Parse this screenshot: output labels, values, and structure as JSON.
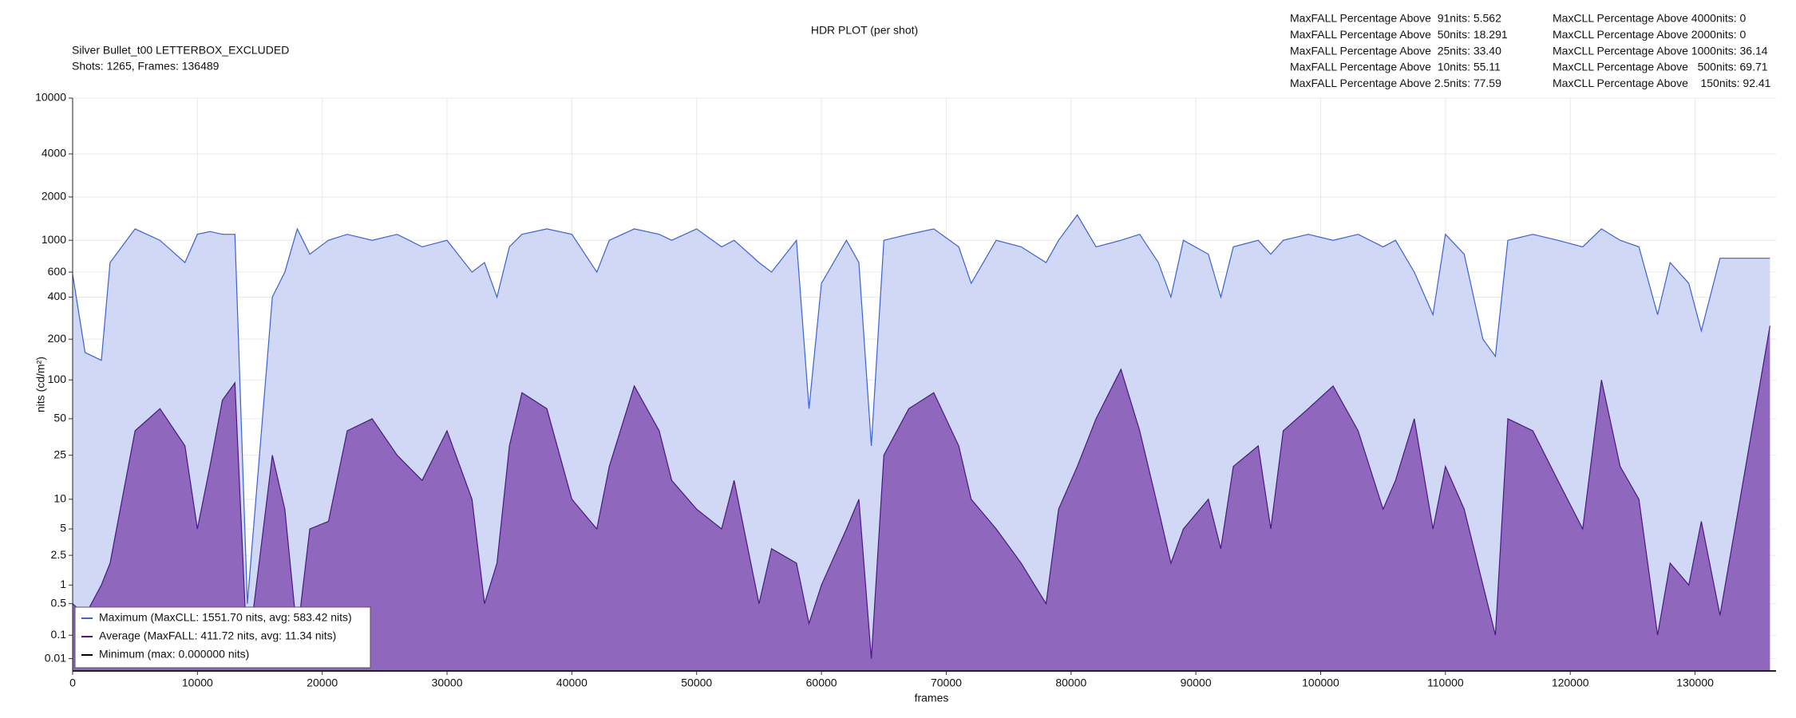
{
  "chart_data": {
    "type": "line",
    "title": "HDR PLOT (per shot)",
    "subtitle_lines": [
      "Silver Bullet_t00 LETTERBOX_EXCLUDED",
      "Shots:  1265, Frames: 136489"
    ],
    "stats": [
      [
        "MaxFALL Percentage Above  91nits: 5.562",
        "MaxFALL Percentage Above  50nits: 18.291",
        "MaxFALL Percentage Above  25nits: 33.40",
        "MaxFALL Percentage Above  10nits: 55.11",
        "MaxFALL Percentage Above 2.5nits: 77.59"
      ],
      [
        "MaxCLL Percentage Above 4000nits: 0",
        "MaxCLL Percentage Above 2000nits: 0",
        "MaxCLL Percentage Above 1000nits: 36.14",
        "MaxCLL Percentage Above   500nits: 69.71",
        "MaxCLL Percentage Above    150nits: 92.41"
      ]
    ],
    "x_label": "frames",
    "y_label": "nits (cd/m²)",
    "y_scale": "pq",
    "grid": true,
    "legend": "lower left",
    "xlim": [
      0,
      136489
    ],
    "xticks": [
      0,
      10000,
      20000,
      30000,
      40000,
      50000,
      60000,
      70000,
      80000,
      90000,
      100000,
      110000,
      120000,
      130000
    ],
    "ylim": [
      0,
      10000
    ],
    "yticks": [
      0.01,
      0.1,
      0.5,
      1,
      2.5,
      5,
      10,
      25,
      50,
      100,
      200,
      400,
      600,
      1000,
      2000,
      4000,
      10000
    ],
    "x": [
      0,
      1000,
      2300,
      3000,
      5000,
      7000,
      9000,
      10000,
      11000,
      12000,
      13000,
      14000,
      16000,
      17000,
      18000,
      19000,
      20500,
      22000,
      24000,
      26000,
      28000,
      30000,
      32000,
      33000,
      34000,
      35000,
      36000,
      38000,
      40000,
      42000,
      43000,
      45000,
      47000,
      48000,
      50000,
      52000,
      53000,
      55000,
      56000,
      58000,
      59000,
      60000,
      62000,
      63000,
      64000,
      65000,
      67000,
      69000,
      71000,
      72000,
      74000,
      76000,
      78000,
      79000,
      80500,
      82000,
      84000,
      85500,
      87000,
      88000,
      89000,
      91000,
      92000,
      93000,
      95000,
      96000,
      97000,
      99000,
      101000,
      103000,
      105000,
      106000,
      107500,
      109000,
      110000,
      111500,
      113000,
      114000,
      115000,
      117000,
      119000,
      121000,
      122500,
      124000,
      125500,
      127000,
      128000,
      129500,
      130500,
      132000,
      136000
    ],
    "series": [
      {
        "name": "Maximum (MaxCLL: 1551.70 nits, avg: 583.42 nits)",
        "color": "#3a62d6",
        "fill": "#d0d8f5",
        "values": [
          580,
          160,
          140,
          700,
          1200,
          1000,
          700,
          1100,
          1150,
          1100,
          1100,
          0.5,
          400,
          600,
          1200,
          800,
          1000,
          1100,
          1000,
          1100,
          900,
          1000,
          600,
          700,
          400,
          900,
          1100,
          1200,
          1100,
          600,
          1000,
          1200,
          1100,
          1000,
          1200,
          900,
          1000,
          700,
          600,
          1000,
          60,
          500,
          1000,
          700,
          30,
          1000,
          1100,
          1200,
          900,
          500,
          1000,
          900,
          700,
          1000,
          1500,
          900,
          1000,
          1100,
          700,
          400,
          1000,
          800,
          400,
          900,
          1000,
          800,
          1000,
          1100,
          1000,
          1100,
          900,
          1000,
          600,
          300,
          1100,
          800,
          200,
          150,
          1000,
          1100,
          1000,
          900,
          1200,
          1000,
          900,
          300,
          700,
          500,
          230,
          750,
          750
        ]
      },
      {
        "name": "Average (MaxFALL: 411.72 nits, avg: 11.34 nits)",
        "color": "#4b1686",
        "fill": "#8f68bd",
        "values": [
          0.5,
          0.3,
          1,
          2,
          40,
          60,
          30,
          5,
          20,
          70,
          95,
          0.01,
          25,
          8,
          0.1,
          5,
          6,
          40,
          50,
          25,
          15,
          40,
          10,
          0.5,
          2,
          30,
          80,
          60,
          10,
          5,
          20,
          90,
          40,
          15,
          8,
          5,
          15,
          0.5,
          3,
          2,
          0.2,
          1,
          5,
          10,
          0.01,
          25,
          60,
          80,
          30,
          10,
          5,
          2,
          0.5,
          8,
          20,
          50,
          120,
          40,
          8,
          2,
          5,
          10,
          3,
          20,
          30,
          5,
          40,
          60,
          90,
          40,
          8,
          15,
          50,
          5,
          20,
          8,
          1,
          0.1,
          50,
          40,
          15,
          5,
          100,
          20,
          10,
          0.1,
          2,
          1,
          6,
          0.3,
          250
        ]
      },
      {
        "name": "Minimum (max: 0.000000 nits)",
        "color": "#000000",
        "values": [
          0,
          0,
          0,
          0,
          0,
          0,
          0,
          0,
          0,
          0,
          0,
          0,
          0,
          0,
          0,
          0,
          0,
          0,
          0,
          0,
          0,
          0,
          0,
          0,
          0,
          0,
          0,
          0,
          0,
          0,
          0,
          0,
          0,
          0,
          0,
          0,
          0,
          0,
          0,
          0,
          0,
          0,
          0,
          0,
          0,
          0,
          0,
          0,
          0,
          0,
          0,
          0,
          0,
          0,
          0,
          0,
          0,
          0,
          0,
          0,
          0,
          0,
          0,
          0,
          0,
          0,
          0,
          0,
          0,
          0,
          0,
          0,
          0,
          0,
          0,
          0,
          0,
          0,
          0,
          0,
          0,
          0,
          0,
          0,
          0,
          0,
          0,
          0,
          0,
          0,
          0
        ]
      }
    ]
  }
}
